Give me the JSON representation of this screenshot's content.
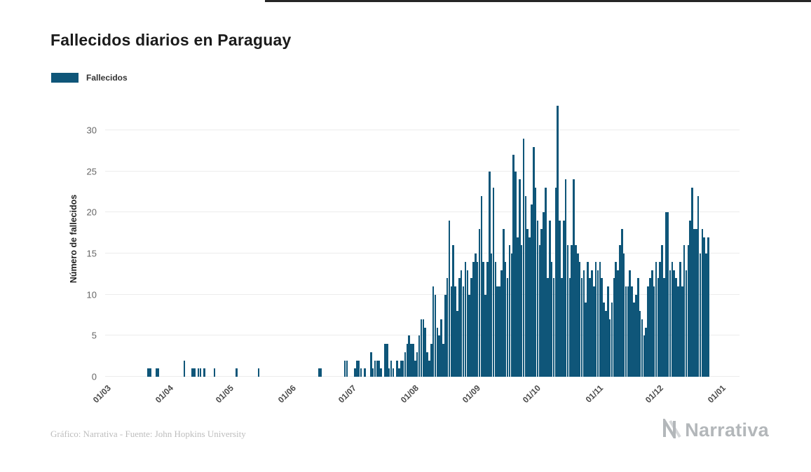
{
  "chart_data": {
    "type": "bar",
    "title": "Fallecidos diarios en Paraguay",
    "ylabel": "Número de fallecidos",
    "series_name": "Fallecidos",
    "bar_color": "#0F5679",
    "grid": true,
    "legend_position": "top-left",
    "ylim": [
      0,
      33.5
    ],
    "y_ticks": [
      0,
      5,
      10,
      15,
      20,
      25,
      30
    ],
    "total_days": 316,
    "x_ticks": [
      {
        "label": "01/03",
        "day": 0
      },
      {
        "label": "01/04",
        "day": 31
      },
      {
        "label": "01/05",
        "day": 61
      },
      {
        "label": "01/06",
        "day": 92
      },
      {
        "label": "01/07",
        "day": 122
      },
      {
        "label": "01/08",
        "day": 153
      },
      {
        "label": "01/09",
        "day": 184
      },
      {
        "label": "01/10",
        "day": 214
      },
      {
        "label": "01/11",
        "day": 245
      },
      {
        "label": "01/12",
        "day": 275
      },
      {
        "label": "01/01",
        "day": 306
      }
    ],
    "values": [
      0,
      0,
      0,
      0,
      0,
      0,
      0,
      0,
      0,
      0,
      0,
      0,
      0,
      0,
      0,
      0,
      0,
      0,
      0,
      0,
      0,
      1,
      1,
      0,
      0,
      1,
      1,
      0,
      0,
      0,
      0,
      0,
      0,
      0,
      0,
      0,
      0,
      0,
      0,
      2,
      0,
      0,
      0,
      1,
      1,
      0,
      1,
      1,
      0,
      1,
      0,
      0,
      0,
      0,
      1,
      0,
      0,
      0,
      0,
      0,
      0,
      0,
      0,
      0,
      0,
      1,
      0,
      0,
      0,
      0,
      0,
      0,
      0,
      0,
      0,
      0,
      1,
      0,
      0,
      0,
      0,
      0,
      0,
      0,
      0,
      0,
      0,
      0,
      0,
      0,
      0,
      0,
      0,
      0,
      0,
      0,
      0,
      0,
      0,
      0,
      0,
      0,
      0,
      0,
      0,
      0,
      1,
      1,
      0,
      0,
      0,
      0,
      0,
      0,
      0,
      0,
      0,
      0,
      0,
      2,
      2,
      0,
      0,
      0,
      1,
      2,
      2,
      1,
      0,
      1,
      0,
      0,
      3,
      1,
      2,
      2,
      2,
      1,
      0,
      4,
      4,
      1,
      2,
      1,
      0,
      2,
      1,
      2,
      2,
      3,
      4,
      5,
      4,
      4,
      2,
      3,
      5,
      7,
      7,
      6,
      3,
      2,
      4,
      11,
      10,
      6,
      5,
      7,
      4,
      10,
      12,
      19,
      11,
      16,
      11,
      8,
      12,
      13,
      11,
      14,
      13,
      10,
      12,
      14,
      15,
      14,
      18,
      22,
      14,
      10,
      14,
      25,
      15,
      23,
      14,
      11,
      11,
      13,
      18,
      14,
      12,
      16,
      15,
      27,
      25,
      17,
      24,
      16,
      29,
      22,
      18,
      17,
      21,
      28,
      23,
      19,
      16,
      18,
      20,
      23,
      12,
      19,
      14,
      12,
      23,
      33,
      19,
      12,
      19,
      24,
      16,
      12,
      16,
      24,
      16,
      15,
      14,
      12,
      13,
      9,
      14,
      12,
      13,
      11,
      14,
      13,
      14,
      12,
      9,
      8,
      11,
      7,
      9,
      12,
      14,
      13,
      16,
      18,
      15,
      11,
      11,
      13,
      11,
      9,
      10,
      12,
      8,
      7,
      5,
      6,
      11,
      12,
      13,
      11,
      14,
      12,
      14,
      16,
      12,
      20,
      20,
      13,
      14,
      13,
      12,
      11,
      14,
      11,
      16,
      13,
      16,
      19,
      23,
      18,
      18,
      22,
      15,
      18,
      17,
      15,
      17,
      0,
      0,
      0,
      0,
      0
    ]
  },
  "footer": {
    "credit": "Gráfico: Narrativa - Fuente: John Hopkins University"
  },
  "branding": {
    "logo_text": "Narrativa"
  }
}
